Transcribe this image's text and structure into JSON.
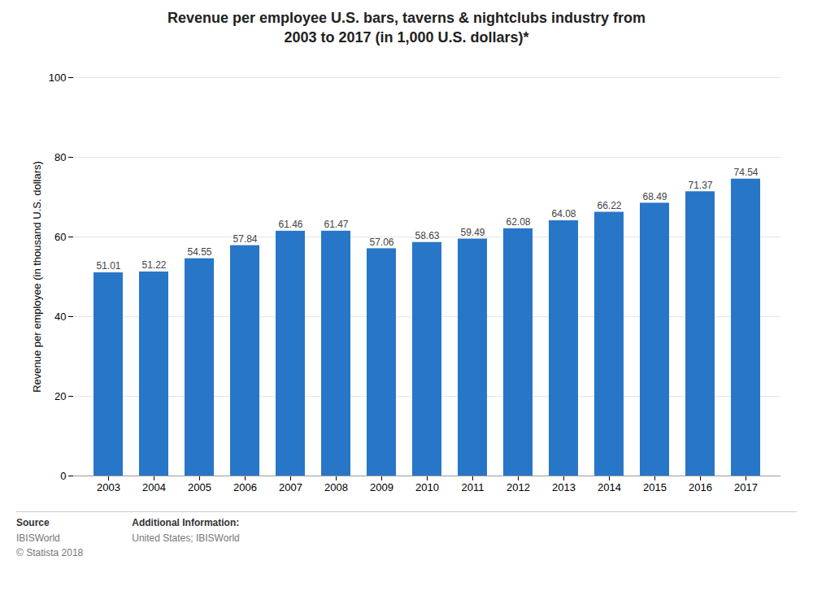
{
  "chart_data": {
    "type": "bar",
    "title": "Revenue per employee U.S. bars, taverns & nightclubs industry from\n2003 to 2017 (in 1,000 U.S. dollars)*",
    "ylabel": "Revenue per employee (in thousand U.S. dollars)",
    "categories": [
      "2003",
      "2004",
      "2005",
      "2006",
      "2007",
      "2008",
      "2009",
      "2010",
      "2011",
      "2012",
      "2013",
      "2014",
      "2015",
      "2016",
      "2017"
    ],
    "values": [
      51.01,
      51.22,
      54.55,
      57.84,
      61.46,
      61.47,
      57.06,
      58.63,
      59.49,
      62.08,
      64.08,
      66.22,
      68.49,
      71.37,
      74.54
    ],
    "color": "#2876c8",
    "ylim": [
      0,
      100
    ],
    "yticks": [
      0,
      20,
      40,
      60,
      80,
      100
    ],
    "grid": true,
    "data_labels": true,
    "annotations": [
      {
        "label": "Source",
        "text": "IBISWorld\n© Statista 2018"
      },
      {
        "label": "Additional Information:",
        "text": "United States; IBISWorld"
      }
    ]
  }
}
